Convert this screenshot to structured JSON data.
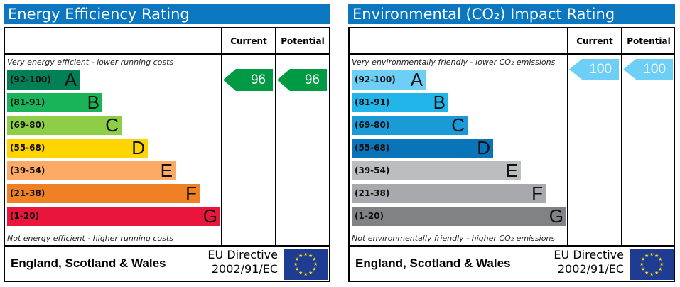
{
  "energy": {
    "title": "Energy Efficiency Rating",
    "current_label": "Current",
    "potential_label": "Potential",
    "top_note": "Very energy efficient - lower running costs",
    "bottom_note": "Not energy efficient - higher running costs",
    "bands": [
      {
        "range": "(92-100)",
        "letter": "A",
        "color": "#008054"
      },
      {
        "range": "(81-91)",
        "letter": "B",
        "color": "#19b459"
      },
      {
        "range": "(69-80)",
        "letter": "C",
        "color": "#8dce46"
      },
      {
        "range": "(55-68)",
        "letter": "D",
        "color": "#ffd500"
      },
      {
        "range": "(39-54)",
        "letter": "E",
        "color": "#fcaa65"
      },
      {
        "range": "(21-38)",
        "letter": "F",
        "color": "#ef8023"
      },
      {
        "range": "(1-20)",
        "letter": "G",
        "color": "#e9153b"
      }
    ],
    "current": "96",
    "potential": "96",
    "arrow_color": "#009a44"
  },
  "environment": {
    "title": "Environmental (CO₂) Impact Rating",
    "current_label": "Current",
    "potential_label": "Potential",
    "top_note": "Very environmentally friendly - lower CO₂ emissions",
    "bottom_note": "Not environmentally friendly - higher CO₂ emissions",
    "bands": [
      {
        "range": "(92-100)",
        "letter": "A",
        "color": "#6dcff6"
      },
      {
        "range": "(81-91)",
        "letter": "B",
        "color": "#22b5eb"
      },
      {
        "range": "(69-80)",
        "letter": "C",
        "color": "#1a9ad6"
      },
      {
        "range": "(55-68)",
        "letter": "D",
        "color": "#0a74b8"
      },
      {
        "range": "(39-54)",
        "letter": "E",
        "color": "#bbbdbf"
      },
      {
        "range": "(21-38)",
        "letter": "F",
        "color": "#a7a9ac"
      },
      {
        "range": "(1-20)",
        "letter": "G",
        "color": "#808285"
      }
    ],
    "current": "100",
    "potential": "100",
    "arrow_color": "#6dcff6"
  },
  "footer": {
    "region": "England, Scotland & Wales",
    "directive_line1": "EU Directive",
    "directive_line2": "2002/91/EC",
    "flag": "eu-flag"
  }
}
